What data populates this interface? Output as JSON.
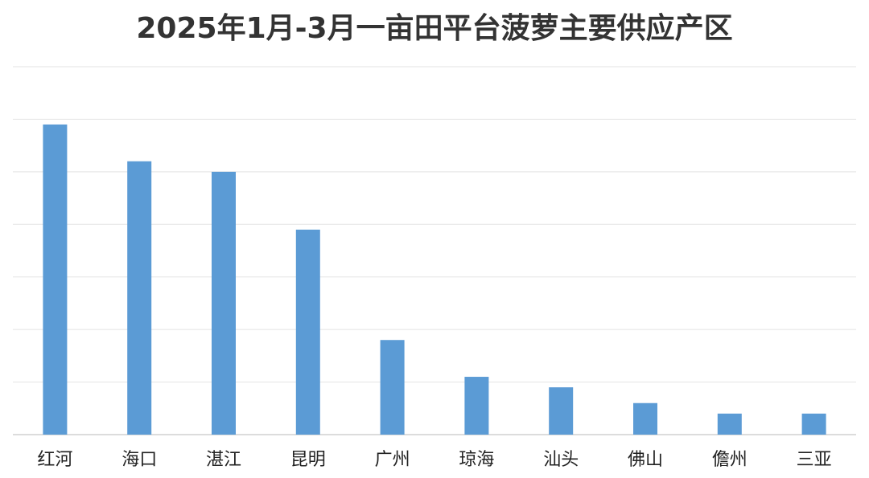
{
  "chart_data": {
    "type": "bar",
    "title": "2025年1月-3月一亩田平台菠萝主要供应产区",
    "xlabel": "",
    "ylabel": "",
    "categories": [
      "红河",
      "海口",
      "湛江",
      "昆明",
      "广州",
      "琼海",
      "汕头",
      "佛山",
      "儋州",
      "三亚"
    ],
    "values": [
      5.9,
      5.2,
      5.0,
      3.9,
      1.8,
      1.1,
      0.9,
      0.6,
      0.4,
      0.4
    ],
    "ylim": [
      0,
      7
    ],
    "grid": true,
    "y_tick_labels_visible": false,
    "legend": "none",
    "bar_color": "#5b9bd5"
  }
}
